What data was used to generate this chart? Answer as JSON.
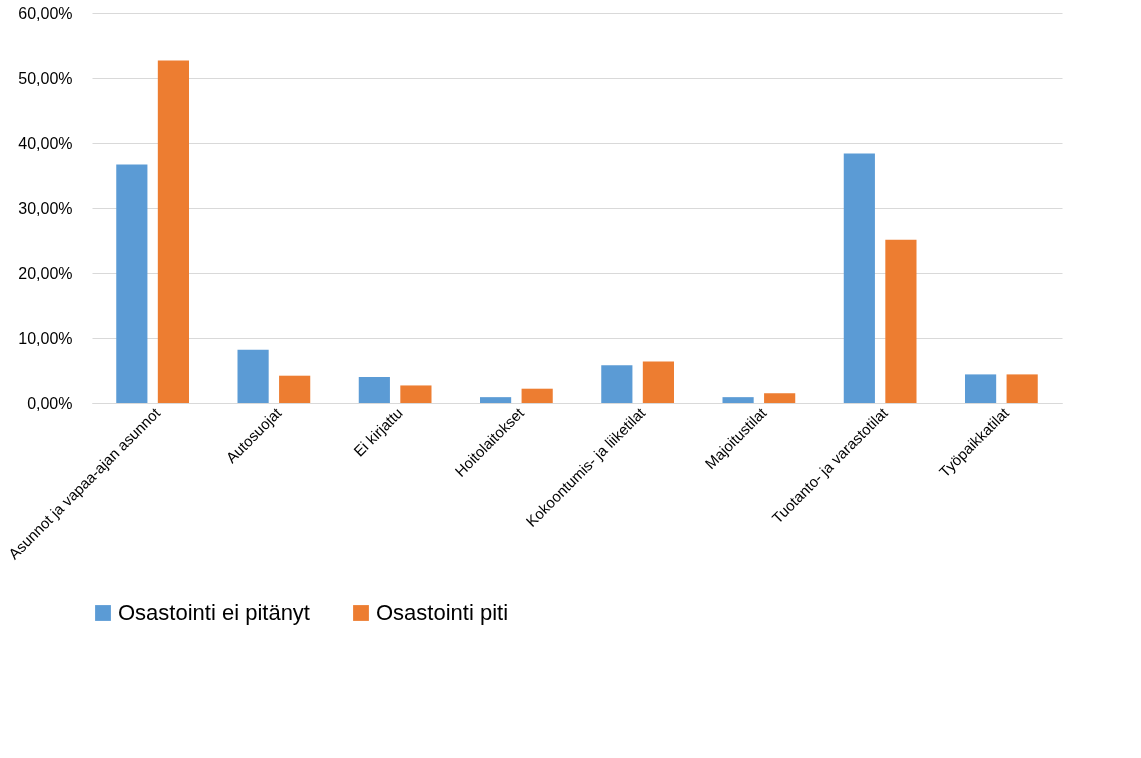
{
  "chart_data": {
    "type": "bar",
    "categories": [
      "Asunnot ja vapaa-ajan asunnot",
      "Autosuojat",
      "Ei kirjattu",
      "Hoitolaitokset",
      "Kokoontumis- ja liiketilat",
      "Majoitustilat",
      "Tuotanto- ja varastotilat",
      "Työpaikkatilat"
    ],
    "series": [
      {
        "name": "Osastointi ei pitänyt",
        "color": "#5b9bd5",
        "values": [
          36.7,
          8.2,
          4.0,
          0.9,
          5.8,
          0.9,
          38.4,
          4.4
        ]
      },
      {
        "name": "Osastointi piti",
        "color": "#ed7d31",
        "values": [
          52.7,
          4.2,
          2.7,
          2.2,
          6.4,
          1.5,
          25.1,
          4.4
        ]
      }
    ],
    "ylim": [
      0,
      60
    ],
    "yticks": [
      {
        "value": 0,
        "label": "0,00%"
      },
      {
        "value": 10,
        "label": "10,00%"
      },
      {
        "value": 20,
        "label": "20,00%"
      },
      {
        "value": 30,
        "label": "30,00%"
      },
      {
        "value": 40,
        "label": "40,00%"
      },
      {
        "value": 50,
        "label": "50,00%"
      },
      {
        "value": 60,
        "label": "60,00%"
      }
    ],
    "grid": "y",
    "legend": "bottom"
  }
}
